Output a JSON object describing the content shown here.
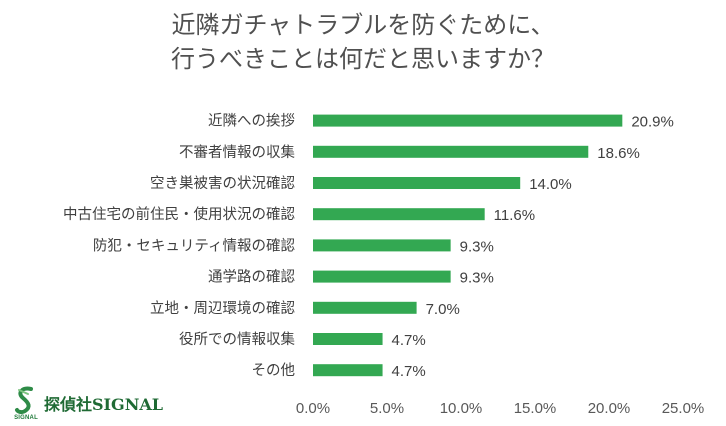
{
  "colors": {
    "bar": "#33a852",
    "axis_text": "#595959",
    "label_text": "#404040"
  },
  "chart_data": {
    "type": "bar",
    "orientation": "horizontal",
    "title_lines": [
      "近隣ガチャトラブルを防ぐために、",
      "行うべきことは何だと思いますか？"
    ],
    "categories": [
      "近隣への挨拶",
      "不審者情報の収集",
      "空き巣被害の状況確認",
      "中古住宅の前住民・使用状況の確認",
      "防犯・セキュリティ情報の確認",
      "通学路の確認",
      "立地・周辺環境の確認",
      "役所での情報収集",
      "その他"
    ],
    "values": [
      20.9,
      18.6,
      14.0,
      11.6,
      9.3,
      9.3,
      7.0,
      4.7,
      4.7
    ],
    "data_labels": [
      "20.9%",
      "18.6%",
      "14.0%",
      "11.6%",
      "9.3%",
      "9.3%",
      "7.0%",
      "4.7%",
      "4.7%"
    ],
    "xlim": [
      0,
      25
    ],
    "xticks": [
      0,
      5,
      10,
      15,
      20,
      25
    ],
    "xtick_labels": [
      "0.0%",
      "5.0%",
      "10.0%",
      "15.0%",
      "20.0%",
      "25.0%"
    ],
    "grid": false,
    "legend": "none"
  },
  "logo": {
    "mark_text": "SIGNAL",
    "name": "探偵社SIGNAL"
  }
}
